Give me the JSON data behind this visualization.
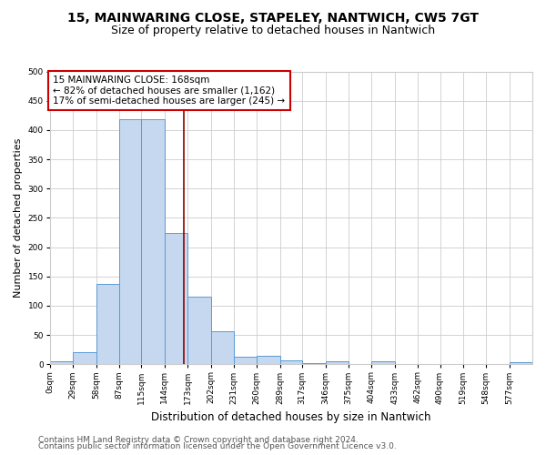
{
  "title": "15, MAINWARING CLOSE, STAPELEY, NANTWICH, CW5 7GT",
  "subtitle": "Size of property relative to detached houses in Nantwich",
  "xlabel": "Distribution of detached houses by size in Nantwich",
  "ylabel": "Number of detached properties",
  "footnote1": "Contains HM Land Registry data © Crown copyright and database right 2024.",
  "footnote2": "Contains public sector information licensed under the Open Government Licence v3.0.",
  "bin_labels": [
    "0sqm",
    "29sqm",
    "58sqm",
    "87sqm",
    "115sqm",
    "144sqm",
    "173sqm",
    "202sqm",
    "231sqm",
    "260sqm",
    "289sqm",
    "317sqm",
    "346sqm",
    "375sqm",
    "404sqm",
    "433sqm",
    "462sqm",
    "490sqm",
    "519sqm",
    "548sqm",
    "577sqm"
  ],
  "bar_heights": [
    5,
    20,
    138,
    418,
    418,
    224,
    116,
    57,
    13,
    15,
    7,
    2,
    5,
    1,
    5,
    1,
    1,
    1,
    1,
    1,
    4
  ],
  "bar_color": "#c5d8f0",
  "bar_edge_color": "#5b9bd5",
  "vline_x": 168,
  "vline_color": "#8B0000",
  "annotation_text": "15 MAINWARING CLOSE: 168sqm\n← 82% of detached houses are smaller (1,162)\n17% of semi-detached houses are larger (245) →",
  "annotation_box_color": "white",
  "annotation_box_edge": "#cc0000",
  "ylim": [
    0,
    500
  ],
  "yticks": [
    0,
    50,
    100,
    150,
    200,
    250,
    300,
    350,
    400,
    450,
    500
  ],
  "grid_color": "#cccccc",
  "background_color": "white",
  "title_fontsize": 10,
  "subtitle_fontsize": 9,
  "xlabel_fontsize": 8.5,
  "ylabel_fontsize": 8,
  "tick_fontsize": 6.5,
  "annotation_fontsize": 7.5,
  "footnote_fontsize": 6.5
}
